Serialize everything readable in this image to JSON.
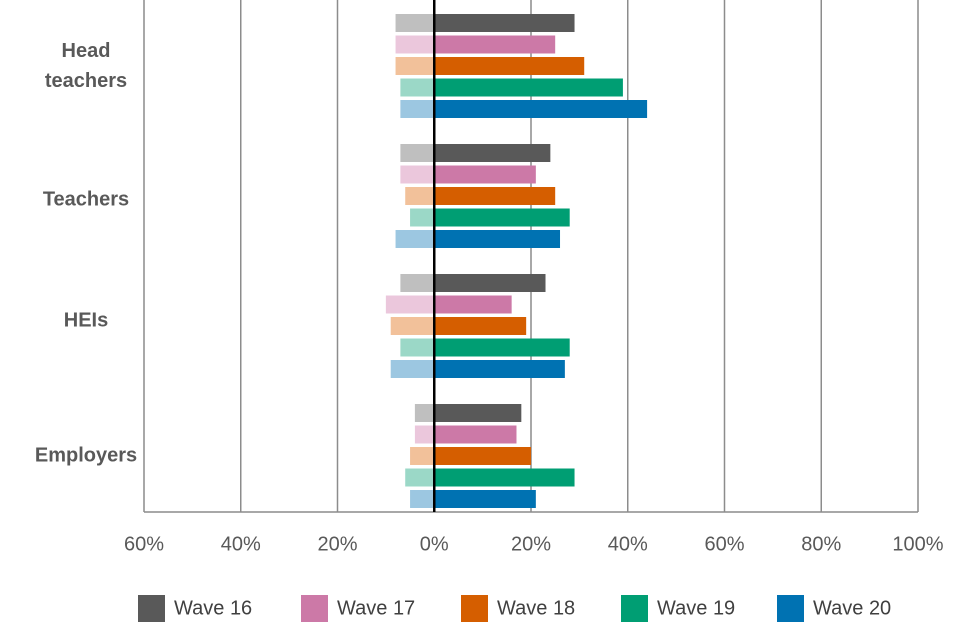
{
  "chart_data": {
    "type": "bar",
    "orientation": "horizontal-diverging",
    "categories": [
      "Head teachers",
      "Teachers",
      "HEIs",
      "Employers"
    ],
    "x_tick_labels": [
      "60%",
      "40%",
      "20%",
      "0%",
      "20%",
      "40%",
      "60%",
      "80%",
      "100%"
    ],
    "xlim": [
      -60,
      100
    ],
    "grid": true,
    "legend_position": "bottom",
    "series": [
      {
        "name": "Wave 16",
        "color": "#595959",
        "light_color": "#bfbfbf",
        "positive": [
          29,
          24,
          23,
          18
        ],
        "negative": [
          8,
          7,
          7,
          4
        ]
      },
      {
        "name": "Wave 17",
        "color": "#cc79a7",
        "light_color": "#ebc7dc",
        "positive": [
          25,
          21,
          16,
          17
        ],
        "negative": [
          8,
          7,
          10,
          4
        ]
      },
      {
        "name": "Wave 18",
        "color": "#d55e00",
        "light_color": "#f2c19a",
        "positive": [
          31,
          25,
          19,
          20
        ],
        "negative": [
          8,
          6,
          9,
          5
        ]
      },
      {
        "name": "Wave 19",
        "color": "#009e73",
        "light_color": "#9bd8c7",
        "positive": [
          39,
          28,
          28,
          29
        ],
        "negative": [
          7,
          5,
          7,
          6
        ]
      },
      {
        "name": "Wave 20",
        "color": "#0072b2",
        "light_color": "#9cc7e1",
        "positive": [
          44,
          26,
          27,
          21
        ],
        "negative": [
          7,
          8,
          9,
          5
        ]
      }
    ]
  }
}
